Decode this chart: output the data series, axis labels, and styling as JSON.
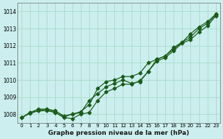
{
  "x": [
    0,
    1,
    2,
    3,
    4,
    5,
    6,
    7,
    8,
    9,
    10,
    11,
    12,
    13,
    14,
    15,
    16,
    17,
    18,
    19,
    20,
    21,
    22,
    23
  ],
  "line1": [
    1007.8,
    1008.1,
    1008.2,
    1008.3,
    1008.2,
    1007.9,
    1008.0,
    1008.1,
    1008.8,
    1009.2,
    1009.6,
    1009.8,
    1010.0,
    1009.8,
    1009.9,
    1010.5,
    1011.2,
    1011.4,
    1011.8,
    1012.2,
    1012.5,
    1013.0,
    1013.3,
    1013.8
  ],
  "line2": [
    1007.8,
    1008.1,
    1008.3,
    1008.3,
    1008.1,
    1007.85,
    1008.0,
    1008.15,
    1008.55,
    1009.5,
    1009.9,
    1010.0,
    1010.2,
    1010.2,
    1010.4,
    1011.0,
    1011.2,
    1011.4,
    1011.9,
    1012.2,
    1012.7,
    1013.1,
    1013.4,
    1013.85
  ],
  "line3": [
    1007.8,
    1008.05,
    1008.2,
    1008.2,
    1008.1,
    1007.8,
    1007.75,
    1008.0,
    1008.1,
    1008.8,
    1009.3,
    1009.5,
    1009.75,
    1009.75,
    1009.95,
    1010.5,
    1011.1,
    1011.3,
    1011.7,
    1012.15,
    1012.35,
    1012.8,
    1013.15,
    1013.75
  ],
  "line_color": "#1a5c1a",
  "marker": "D",
  "marker_size": 2.5,
  "bg_color": "#cceeee",
  "grid_color": "#aaddcc",
  "xlabel": "Graphe pression niveau de la mer (hPa)",
  "ylim": [
    1007.5,
    1014.5
  ],
  "xlim": [
    -0.5,
    23.5
  ],
  "yticks": [
    1008,
    1009,
    1010,
    1011,
    1012,
    1013,
    1014
  ],
  "xticks": [
    0,
    1,
    2,
    3,
    4,
    5,
    6,
    7,
    8,
    9,
    10,
    11,
    12,
    13,
    14,
    15,
    16,
    17,
    18,
    19,
    20,
    21,
    22,
    23
  ]
}
